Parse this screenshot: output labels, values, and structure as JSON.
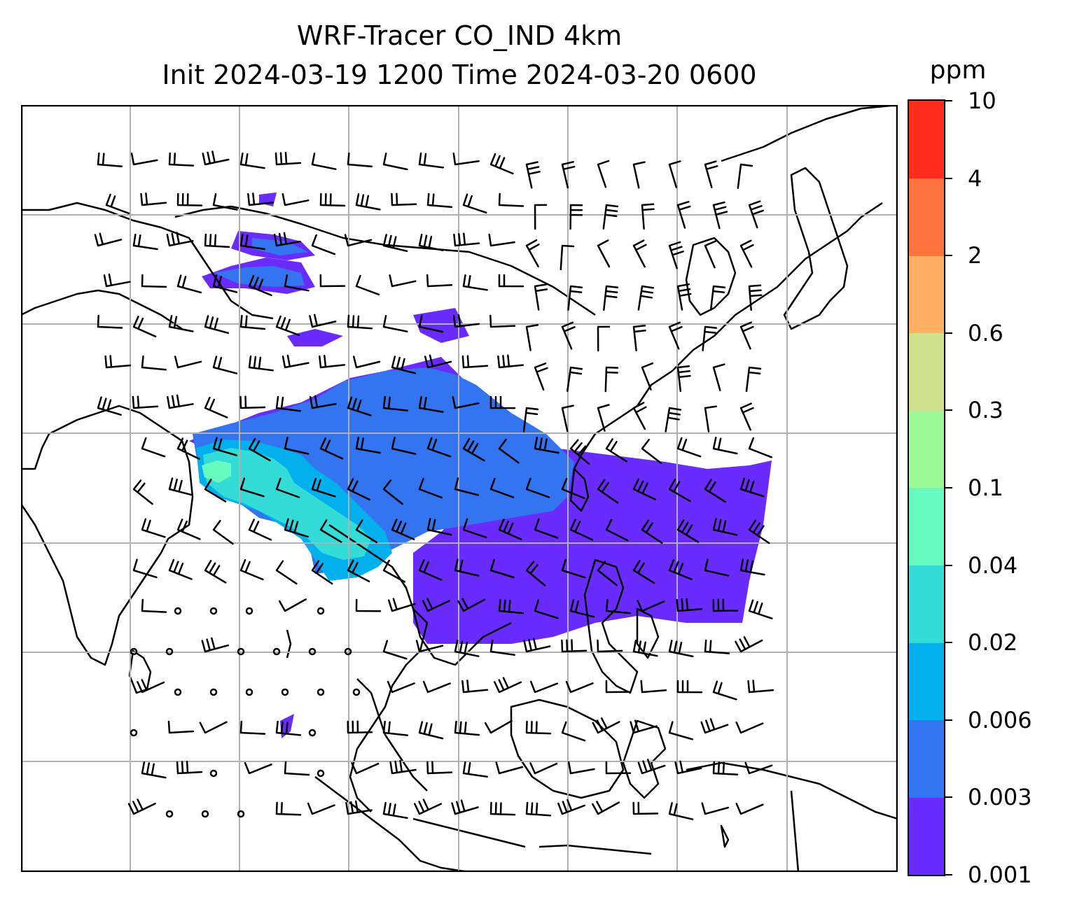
{
  "title_line1": "WRF-Tracer CO_IND 4km",
  "title_line2": "Init 2024-03-19 1200 Time 2024-03-20 0600",
  "colorbar": {
    "unit": "ppm",
    "ticks": [
      "0.001",
      "0.003",
      "0.006",
      "0.02",
      "0.04",
      "0.1",
      "0.3",
      "0.6",
      "2",
      "4",
      "10"
    ],
    "colors": [
      "#6a2bff",
      "#3374f1",
      "#02b0ee",
      "#33dcd6",
      "#66fbbe",
      "#9afb98",
      "#cfe18a",
      "#ffb061",
      "#ff743e",
      "#ff2d1b"
    ]
  },
  "map": {
    "gridlines": true,
    "features": [
      "coastlines",
      "country borders"
    ],
    "overlays": [
      "CO tracer concentration (filled contours)",
      "wind barbs"
    ]
  }
}
